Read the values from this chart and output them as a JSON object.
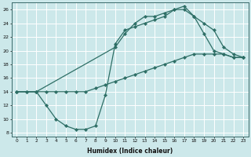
{
  "xlabel": "Humidex (Indice chaleur)",
  "bg_color": "#cce8ea",
  "grid_color": "#ffffff",
  "line_color": "#2d6e65",
  "xlim": [
    -0.5,
    23.5
  ],
  "ylim": [
    7.5,
    27
  ],
  "xticks": [
    0,
    1,
    2,
    3,
    4,
    5,
    6,
    7,
    8,
    9,
    10,
    11,
    12,
    13,
    14,
    15,
    16,
    17,
    18,
    19,
    20,
    21,
    22,
    23
  ],
  "yticks": [
    8,
    10,
    12,
    14,
    16,
    18,
    20,
    22,
    24,
    26
  ],
  "line1_x": [
    0,
    1,
    2,
    3,
    4,
    5,
    6,
    7,
    8,
    9,
    10,
    11,
    12,
    13,
    14,
    15,
    16,
    17,
    18,
    19,
    20,
    21,
    22,
    23
  ],
  "line1_y": [
    14.0,
    14.0,
    14.0,
    14.0,
    14.0,
    14.0,
    14.0,
    14.0,
    14.5,
    15.0,
    15.5,
    16.0,
    16.5,
    17.0,
    17.5,
    18.0,
    18.5,
    19.0,
    19.5,
    19.5,
    19.5,
    19.5,
    19.0,
    19.0
  ],
  "line2_x": [
    0,
    1,
    2,
    3,
    4,
    5,
    6,
    7,
    8,
    9,
    10,
    11,
    12,
    13,
    14,
    15,
    16,
    17,
    18,
    19,
    20,
    21,
    22,
    23
  ],
  "line2_y": [
    14.0,
    14.0,
    14.0,
    12.0,
    10.0,
    9.0,
    8.5,
    8.5,
    9.0,
    13.5,
    21.0,
    23.0,
    23.5,
    24.0,
    24.5,
    25.0,
    26.0,
    26.0,
    25.0,
    22.5,
    20.0,
    19.5,
    19.0,
    19.0
  ],
  "line3_x": [
    0,
    2,
    10,
    11,
    12,
    13,
    14,
    15,
    16,
    17,
    18,
    19,
    20,
    21,
    22,
    23
  ],
  "line3_y": [
    14.0,
    14.0,
    20.5,
    22.5,
    24.0,
    25.0,
    25.0,
    25.5,
    26.0,
    26.5,
    25.0,
    24.0,
    23.0,
    20.5,
    19.5,
    19.0
  ]
}
